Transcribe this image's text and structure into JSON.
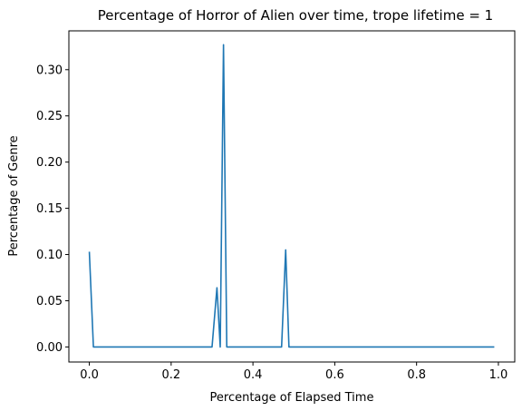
{
  "chart_data": {
    "type": "line",
    "title": "Percentage of Horror of Alien over time, trope lifetime = 1",
    "xlabel": "Percentage of Elapsed Time",
    "ylabel": "Percentage of Genre",
    "xlim": [
      -0.05,
      1.04
    ],
    "ylim": [
      -0.0163,
      0.342
    ],
    "grid": false,
    "x_ticks": [
      0.0,
      0.2,
      0.4,
      0.6,
      0.8,
      1.0
    ],
    "x_tick_labels": [
      "0.0",
      "0.2",
      "0.4",
      "0.6",
      "0.8",
      "1.0"
    ],
    "y_ticks": [
      0.0,
      0.05,
      0.1,
      0.15,
      0.2,
      0.25,
      0.3
    ],
    "y_tick_labels": [
      "0.00",
      "0.05",
      "0.10",
      "0.15",
      "0.20",
      "0.25",
      "0.30"
    ],
    "series": [
      {
        "color": "#1f77b4",
        "x": [
          0.0,
          0.01,
          0.3,
          0.312,
          0.32,
          0.328,
          0.336,
          0.47,
          0.48,
          0.488,
          0.99
        ],
        "y": [
          0.103,
          0.0,
          0.0,
          0.064,
          0.0,
          0.327,
          0.0,
          0.0,
          0.105,
          0.0,
          0.0
        ]
      }
    ]
  }
}
